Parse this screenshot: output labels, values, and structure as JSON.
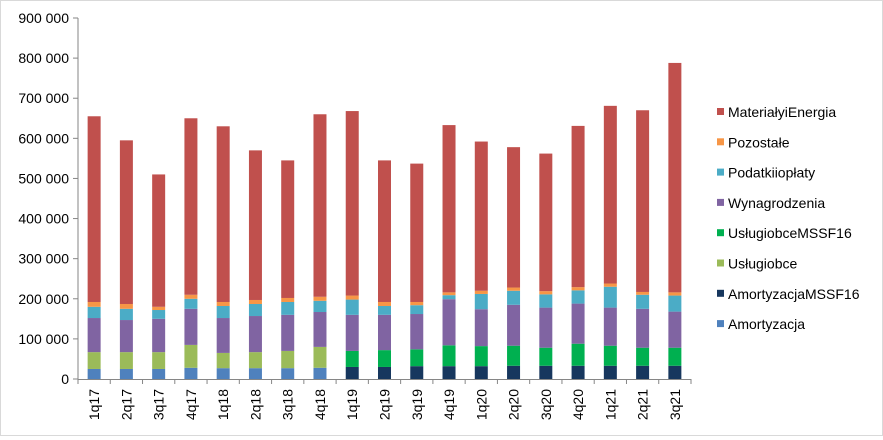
{
  "chart_data": {
    "type": "bar",
    "stacked": true,
    "categories": [
      "1q17",
      "2q17",
      "3q17",
      "4q17",
      "1q18",
      "2q18",
      "3q18",
      "4q18",
      "1q19",
      "2q19",
      "3q19",
      "4q19",
      "1q20",
      "2q20",
      "3q20",
      "4q20",
      "1q21",
      "2q21",
      "3q21"
    ],
    "y_tick_labels": [
      "0",
      "100 000",
      "200 000",
      "300 000",
      "400 000",
      "500 000",
      "600 000",
      "700 000",
      "800 000",
      "900 000"
    ],
    "ylim": [
      0,
      900000
    ],
    "grid": false,
    "legend_position": "right",
    "series": [
      {
        "name": "Amortyzacja",
        "color": "#4f81bd",
        "values": [
          25000,
          25000,
          25000,
          28000,
          27000,
          27000,
          27000,
          28000,
          0,
          0,
          0,
          0,
          0,
          0,
          0,
          0,
          0,
          0,
          0
        ]
      },
      {
        "name": "AmortyzacjaMSSF16",
        "color": "#17375e",
        "values": [
          0,
          0,
          0,
          0,
          0,
          0,
          0,
          0,
          30000,
          30000,
          32000,
          32000,
          32000,
          33000,
          33000,
          33000,
          33000,
          33000,
          33000
        ]
      },
      {
        "name": "Usługiobce",
        "color": "#9bbb59",
        "values": [
          42000,
          42000,
          42000,
          57000,
          38000,
          40000,
          43000,
          52000,
          0,
          0,
          0,
          0,
          0,
          0,
          0,
          0,
          0,
          0,
          0
        ]
      },
      {
        "name": "UsługiobceMSSF16",
        "color": "#00b050",
        "values": [
          0,
          0,
          0,
          0,
          0,
          0,
          0,
          0,
          40000,
          42000,
          42000,
          52000,
          50000,
          50000,
          45000,
          55000,
          50000,
          45000,
          45000
        ]
      },
      {
        "name": "Wynagrodzenia",
        "color": "#8064a2",
        "values": [
          85000,
          80000,
          83000,
          90000,
          87000,
          90000,
          90000,
          87000,
          90000,
          88000,
          88000,
          115000,
          92000,
          102000,
          100000,
          100000,
          95000,
          97000,
          90000
        ]
      },
      {
        "name": "Podatkiiopłaty",
        "color": "#4bacc6",
        "values": [
          28000,
          28000,
          22000,
          25000,
          30000,
          30000,
          32000,
          28000,
          38000,
          22000,
          22000,
          10000,
          38000,
          35000,
          33000,
          33000,
          52000,
          35000,
          40000
        ]
      },
      {
        "name": "Pozostałe",
        "color": "#f79646",
        "values": [
          12000,
          12000,
          8000,
          10000,
          10000,
          10000,
          10000,
          10000,
          10000,
          10000,
          8000,
          7000,
          8000,
          8000,
          8000,
          8000,
          8000,
          7000,
          8000
        ]
      },
      {
        "name": "MateriałyiEnergia",
        "color": "#c0504d",
        "values": [
          463000,
          408000,
          330000,
          440000,
          438000,
          373000,
          343000,
          455000,
          460000,
          353000,
          345000,
          417000,
          372000,
          350000,
          343000,
          402000,
          443000,
          453000,
          572000
        ]
      }
    ],
    "legend_order": [
      "MateriałyiEnergia",
      "Pozostałe",
      "Podatkiiopłaty",
      "Wynagrodzenia",
      "UsługiobceMSSF16",
      "Usługiobce",
      "AmortyzacjaMSSF16",
      "Amortyzacja"
    ]
  }
}
